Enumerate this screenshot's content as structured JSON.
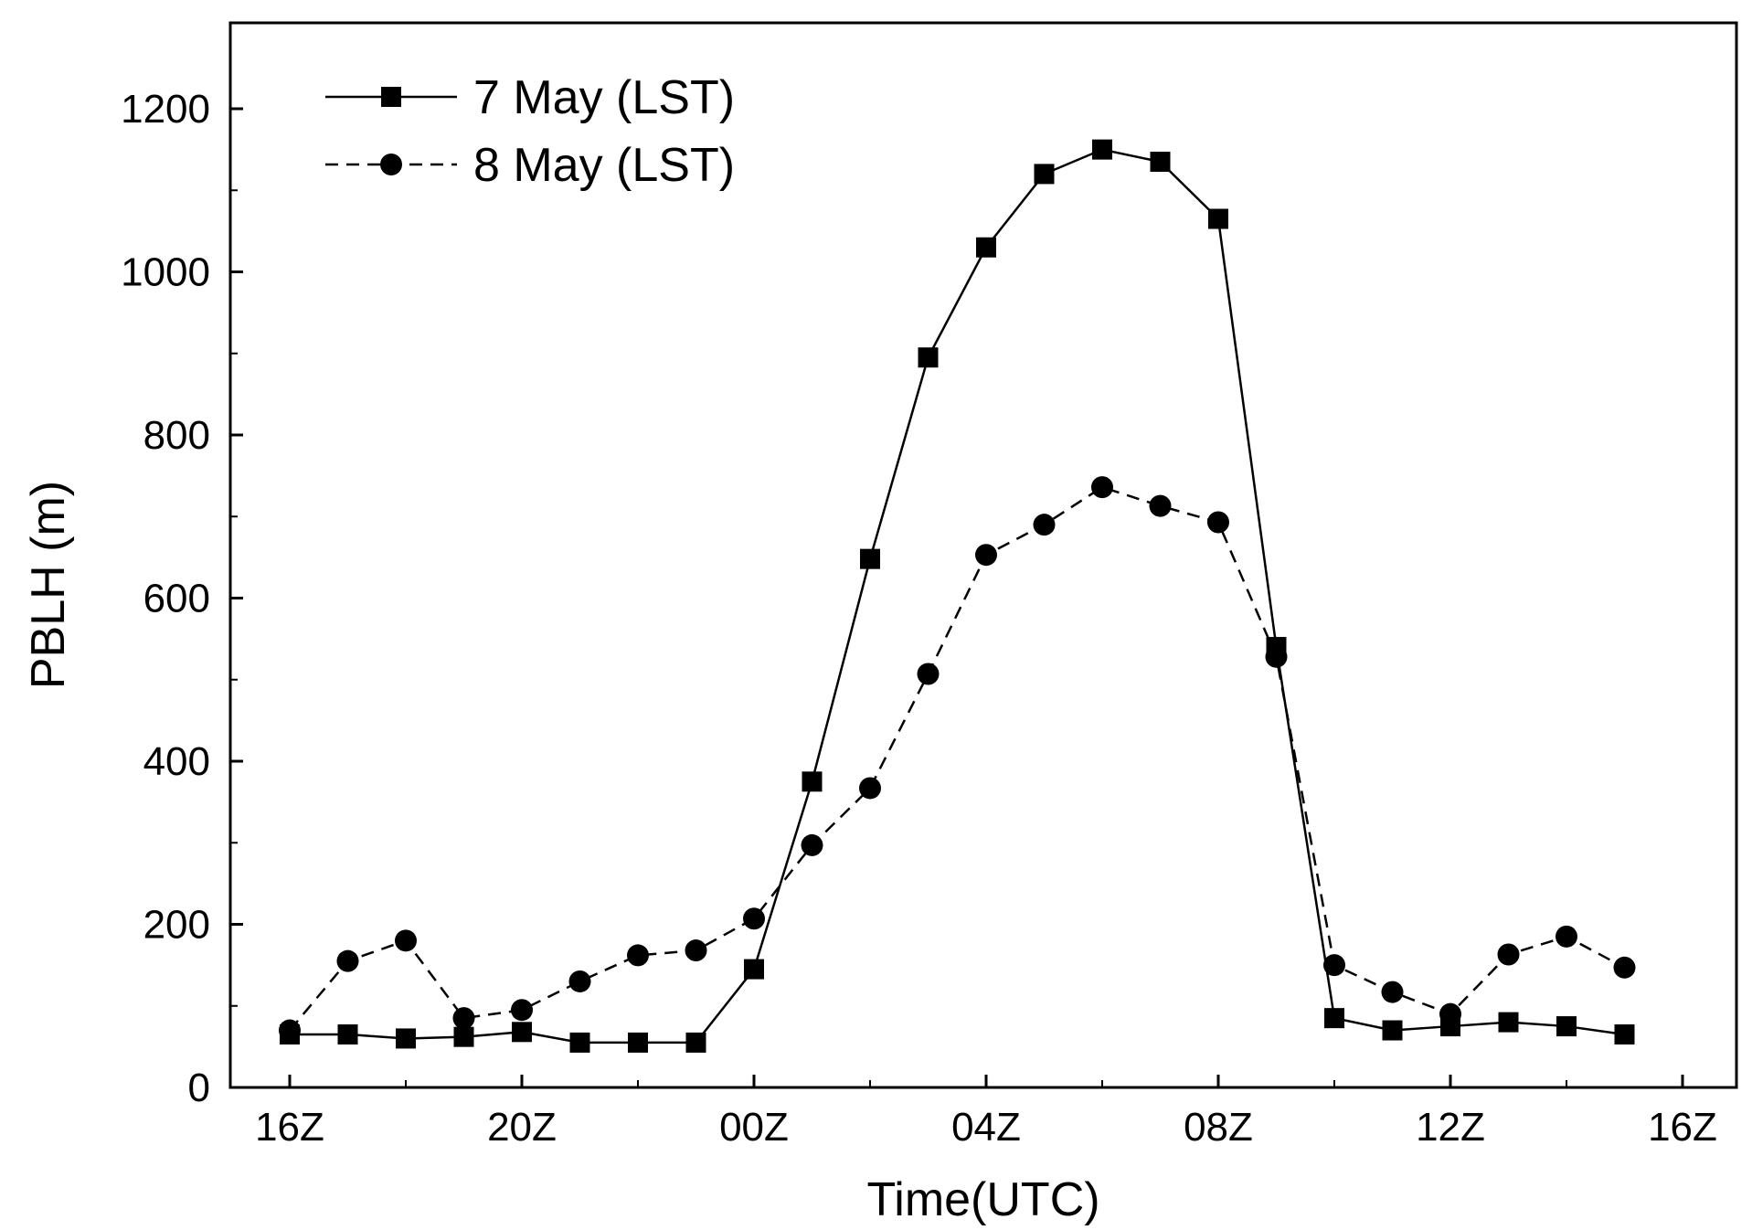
{
  "chart_data": {
    "type": "line",
    "xlabel": "Time(UTC)",
    "ylabel": "PBLH (m)",
    "x_tick_labels": [
      "16Z",
      "20Z",
      "00Z",
      "04Z",
      "08Z",
      "12Z",
      "16Z"
    ],
    "y_ticks": [
      0,
      200,
      400,
      600,
      800,
      1000,
      1200
    ],
    "ylim": [
      0,
      1300
    ],
    "x_hours": [
      16,
      17,
      18,
      19,
      20,
      21,
      22,
      23,
      0,
      1,
      2,
      3,
      4,
      5,
      6,
      7,
      8,
      9,
      10,
      11,
      12,
      13,
      14,
      15
    ],
    "legend_position": "top-left",
    "grid": false,
    "series": [
      {
        "name": "7 May (LST)",
        "marker": "square",
        "line_style": "solid",
        "color": "#000000",
        "values": [
          65,
          65,
          60,
          62,
          68,
          55,
          55,
          55,
          145,
          375,
          648,
          895,
          1030,
          1120,
          1150,
          1135,
          1065,
          540,
          85,
          70,
          75,
          80,
          75,
          65
        ]
      },
      {
        "name": "8 May (LST)",
        "marker": "circle",
        "line_style": "dashed",
        "color": "#000000",
        "values": [
          70,
          155,
          180,
          85,
          95,
          130,
          162,
          168,
          207,
          297,
          367,
          507,
          653,
          690,
          736,
          713,
          693,
          528,
          150,
          117,
          90,
          163,
          185,
          147
        ]
      }
    ]
  }
}
